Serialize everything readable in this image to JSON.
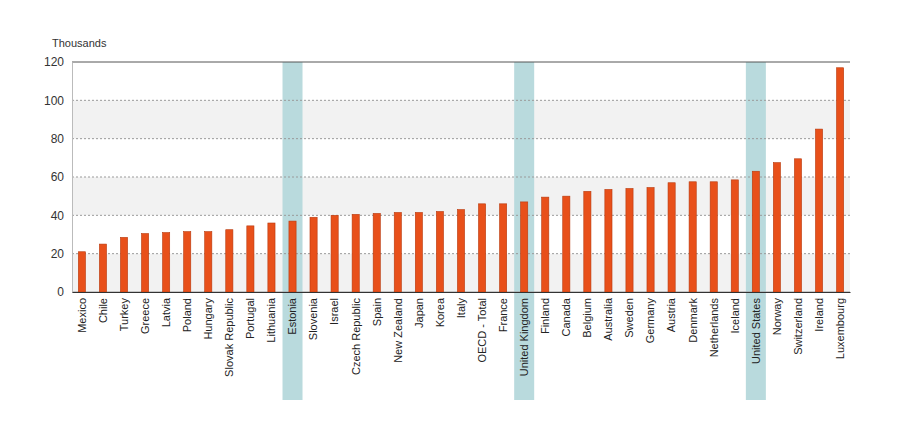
{
  "chart_data": {
    "type": "bar",
    "ylabel": "Thousands",
    "categories": [
      "Mexico",
      "Chile",
      "Turkey",
      "Greece",
      "Latvia",
      "Poland",
      "Hungary",
      "Slovak Republic",
      "Portugal",
      "Lithuania",
      "Estonia",
      "Slovenia",
      "Israel",
      "Czech Republic",
      "Spain",
      "New Zealand",
      "Japan",
      "Korea",
      "Italy",
      "OECD - Total",
      "France",
      "United Kingdom",
      "Finland",
      "Canada",
      "Belgium",
      "Australia",
      "Sweden",
      "Germany",
      "Austria",
      "Denmark",
      "Netherlands",
      "Iceland",
      "United States",
      "Norway",
      "Switzerland",
      "Ireland",
      "Luxembourg"
    ],
    "values": [
      21,
      25,
      28.5,
      30.5,
      31,
      31.5,
      31.5,
      32.5,
      34.5,
      36,
      37,
      39,
      40,
      40.5,
      41,
      41.5,
      41.5,
      42,
      43,
      46,
      46,
      47,
      49.5,
      50,
      52.5,
      53.5,
      54,
      54.5,
      57,
      57.5,
      57.5,
      58.5,
      63,
      67.5,
      69.5,
      85,
      117
    ],
    "highlight": [
      "Estonia",
      "United Kingdom",
      "United States"
    ],
    "color": "#e8501a",
    "ylim": [
      0,
      120
    ],
    "yticks": [
      0,
      20,
      40,
      60,
      80,
      100,
      120
    ],
    "grid": true
  }
}
